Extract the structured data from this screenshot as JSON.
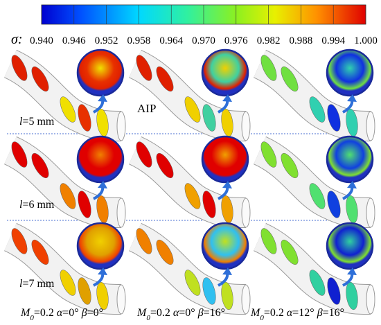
{
  "colorbar": {
    "symbol": "σ:",
    "range": [
      0.94,
      1.0
    ],
    "ticks": [
      {
        "value": 0.94,
        "label": "0.940"
      },
      {
        "value": 0.946,
        "label": "0.946"
      },
      {
        "value": 0.952,
        "label": "0.952"
      },
      {
        "value": 0.958,
        "label": "0.958"
      },
      {
        "value": 0.964,
        "label": "0.964"
      },
      {
        "value": 0.97,
        "label": "0.970"
      },
      {
        "value": 0.976,
        "label": "0.976"
      },
      {
        "value": 0.982,
        "label": "0.982"
      },
      {
        "value": 0.988,
        "label": "0.988"
      },
      {
        "value": 0.994,
        "label": "0.994"
      },
      {
        "value": 1.0,
        "label": "1.000"
      }
    ]
  },
  "annotation": "AIP",
  "rows": [
    {
      "parts": [
        "l",
        "=5 mm"
      ]
    },
    {
      "parts": [
        "l",
        "=6 mm"
      ]
    },
    {
      "parts": [
        "l",
        "=7 mm"
      ]
    }
  ],
  "columns": [
    {
      "parts": [
        "M",
        "0",
        "=0.2 ",
        "α",
        "=0° ",
        "β",
        "=0°"
      ]
    },
    {
      "parts": [
        "M",
        "0",
        "=0.2 ",
        "α",
        "=0° ",
        "β",
        "=16°"
      ]
    },
    {
      "parts": [
        "M",
        "0",
        "=0.2 ",
        "α",
        "=12° ",
        "β",
        "=16°"
      ]
    }
  ]
}
